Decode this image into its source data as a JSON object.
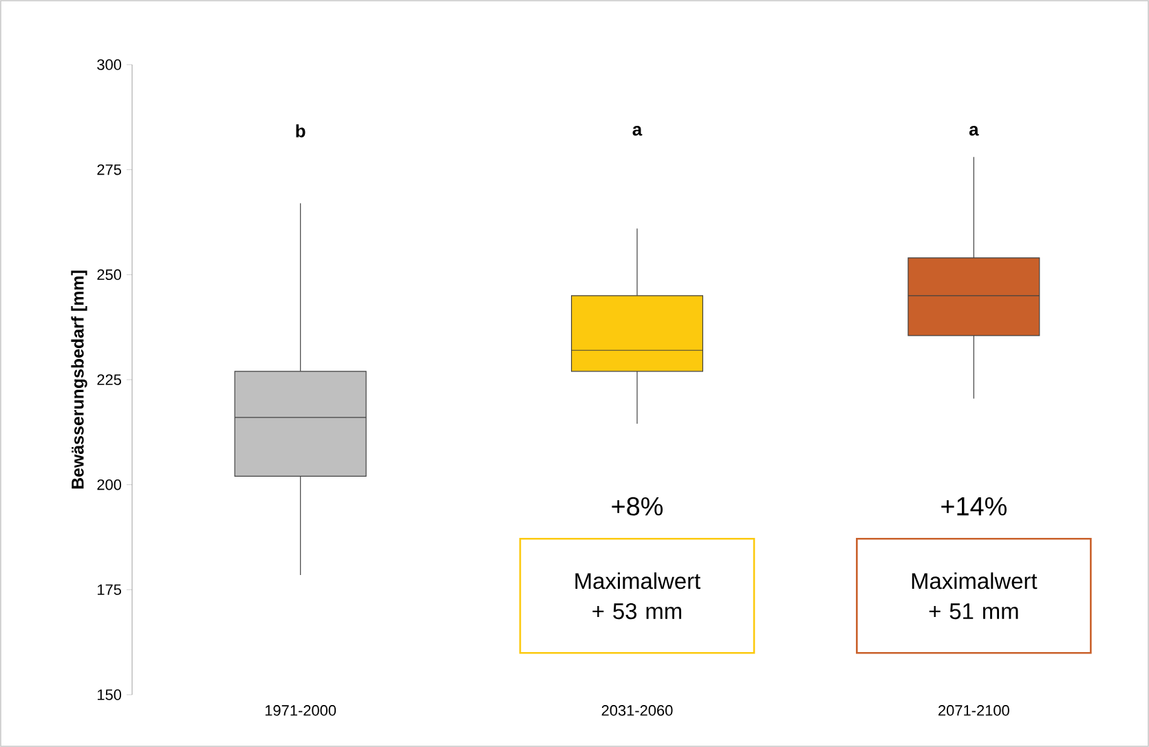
{
  "chart_data": {
    "type": "box",
    "ylabel": "Bewässerungsbedarf [mm]",
    "categories": [
      "1971-2000",
      "2031-2060",
      "2071-2100"
    ],
    "boxes": [
      {
        "low": 178.5,
        "q1": 202,
        "median": 216,
        "q3": 227,
        "high": 267
      },
      {
        "low": 214.5,
        "q1": 227,
        "median": 232,
        "q3": 245,
        "high": 261
      },
      {
        "low": 220.5,
        "q1": 235.5,
        "median": 245,
        "q3": 254,
        "high": 278
      }
    ],
    "colors": [
      "#bfbfbf",
      "#fcc90e",
      "#c9602a"
    ],
    "ylim": [
      150,
      300
    ],
    "yticks": [
      150,
      175,
      200,
      225,
      250,
      275,
      300
    ],
    "grid": false,
    "annotations": [
      "b",
      "a",
      "a",
      "+8%",
      "+14%",
      "Maximalwert + 53 mm",
      "Maximalwert + 51 mm"
    ]
  }
}
